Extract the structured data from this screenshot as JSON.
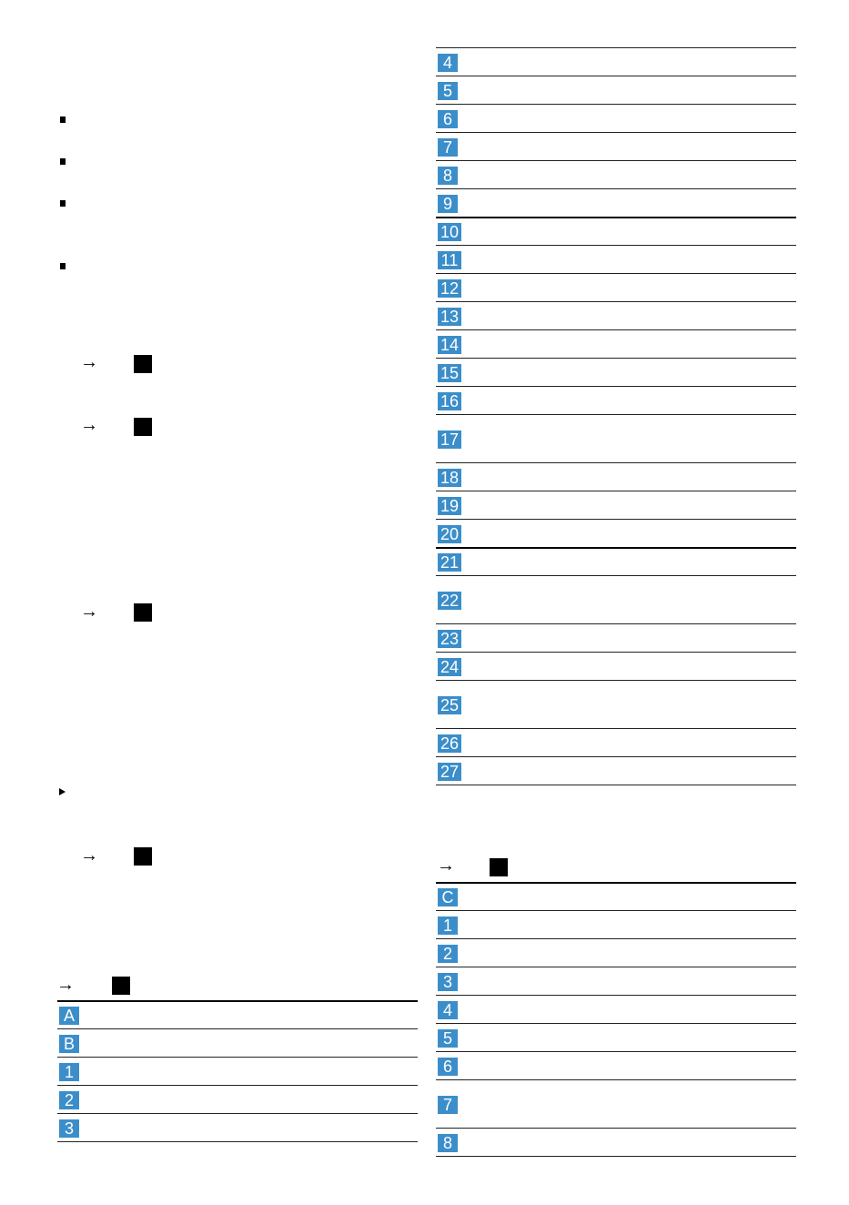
{
  "tables": [
    {
      "rows": [
        "4",
        "5",
        "6",
        "7",
        "8",
        "9",
        "10",
        "11",
        "12",
        "13",
        "14",
        "15",
        "16",
        "17",
        "18",
        "19",
        "20",
        "21",
        "22",
        "23",
        "24",
        "25",
        "26",
        "27"
      ]
    },
    {
      "rows": [
        "C",
        "1",
        "2",
        "3",
        "4",
        "5",
        "6",
        "7",
        "8"
      ]
    },
    {
      "rows": [
        "A",
        "B",
        "1",
        "2",
        "3"
      ]
    }
  ]
}
